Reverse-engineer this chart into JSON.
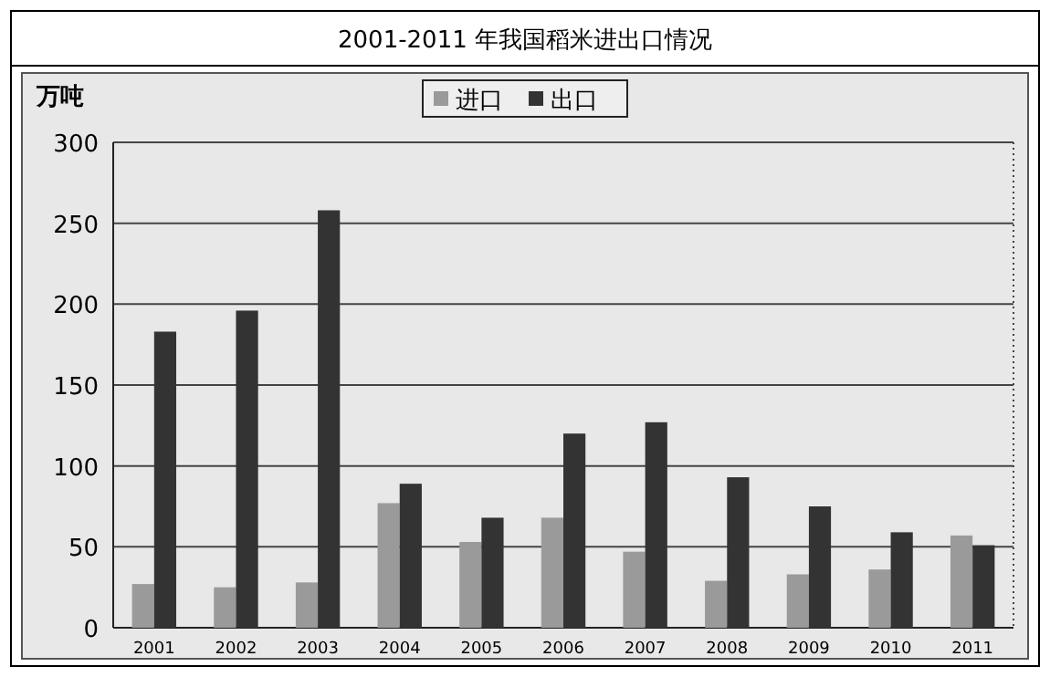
{
  "chart_data": {
    "type": "bar",
    "title": "2001-2011 年我国稻米进出口情况",
    "ylabel": "万吨",
    "categories": [
      "2001",
      "2002",
      "2003",
      "2004",
      "2005",
      "2006",
      "2007",
      "2008",
      "2009",
      "2010",
      "2011"
    ],
    "series": [
      {
        "name": "进口",
        "color": "#9a9a9a",
        "values": [
          27,
          25,
          28,
          77,
          53,
          68,
          47,
          29,
          33,
          36,
          57
        ]
      },
      {
        "name": "出口",
        "color": "#333333",
        "values": [
          183,
          196,
          258,
          89,
          68,
          120,
          127,
          93,
          75,
          59,
          51
        ]
      }
    ],
    "ylim": [
      0,
      300
    ],
    "yticks": [
      0,
      50,
      100,
      150,
      200,
      250,
      300
    ],
    "grid": "y",
    "legend": "top"
  }
}
